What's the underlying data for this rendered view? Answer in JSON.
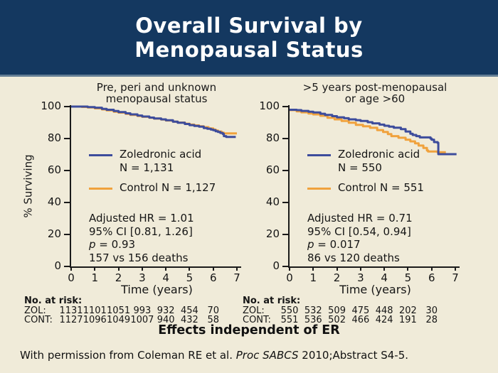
{
  "slide": {
    "title_line1": "Overall Survival by",
    "title_line2": "Menopausal Status",
    "effects_note": "Effects independent of ER",
    "footer_prefix": "With permission from Coleman RE et al. ",
    "footer_italic": "Proc SABCS",
    "footer_suffix": " 2010;Abstract S4-5."
  },
  "colors": {
    "header_bg": "#143860",
    "header_rule": "#647E95",
    "body_bg": "#F0EBD9",
    "zoledronic": "#3D4C9C",
    "control": "#F0A23D",
    "axis": "#1a1a1a",
    "title_text": "#FFFFFF"
  },
  "chart_data": [
    {
      "type": "line",
      "title_line1": "Pre, peri and unknown",
      "title_line2": "menopausal status",
      "ylabel": "% Surviving",
      "xlabel": "Time (years)",
      "xlim": [
        0,
        7
      ],
      "ylim": [
        0,
        100
      ],
      "xticks": [
        0,
        1,
        2,
        3,
        4,
        5,
        6,
        7
      ],
      "yticks": [
        0,
        20,
        40,
        60,
        80,
        100
      ],
      "grid": false,
      "legend_position": "center-left",
      "legend": [
        {
          "line1": "Zoledronic acid",
          "line2": "N = 1,131"
        },
        {
          "line1": "Control N = 1,127",
          "line2": ""
        }
      ],
      "stats": {
        "hr": "Adjusted HR = 1.01",
        "ci": "95% CI [0.81, 1.26]",
        "p_italic": "p",
        "p_rest": " = 0.93",
        "deaths": "157 vs 156 deaths"
      },
      "series": [
        {
          "name": "Zoledronic acid",
          "color_key": "zoledronic",
          "points": [
            [
              0,
              100
            ],
            [
              0.45,
              100
            ],
            [
              0.7,
              99.7
            ],
            [
              1,
              99.3
            ],
            [
              1.3,
              98.6
            ],
            [
              1.5,
              98
            ],
            [
              1.8,
              97.2
            ],
            [
              2,
              96.6
            ],
            [
              2.3,
              95.8
            ],
            [
              2.5,
              95.1
            ],
            [
              2.8,
              94.4
            ],
            [
              3,
              93.8
            ],
            [
              3.3,
              93.1
            ],
            [
              3.5,
              92.6
            ],
            [
              3.8,
              92
            ],
            [
              4,
              91.4
            ],
            [
              4.3,
              90.6
            ],
            [
              4.5,
              89.9
            ],
            [
              4.8,
              89.1
            ],
            [
              5,
              88.4
            ],
            [
              5.2,
              87.9
            ],
            [
              5.4,
              87.4
            ],
            [
              5.6,
              86.6
            ],
            [
              5.75,
              86.1
            ],
            [
              5.9,
              85.6
            ],
            [
              6,
              85.2
            ],
            [
              6.1,
              84.6
            ],
            [
              6.2,
              84.1
            ],
            [
              6.3,
              83.5
            ],
            [
              6.4,
              82.9
            ],
            [
              6.45,
              81.5
            ],
            [
              6.55,
              81
            ],
            [
              6.95,
              81
            ]
          ]
        },
        {
          "name": "Control",
          "color_key": "control",
          "points": [
            [
              0,
              100
            ],
            [
              0.45,
              99.8
            ],
            [
              0.7,
              99.4
            ],
            [
              1,
              98.9
            ],
            [
              1.3,
              98.2
            ],
            [
              1.5,
              97.6
            ],
            [
              1.8,
              96.8
            ],
            [
              2,
              96.2
            ],
            [
              2.3,
              95.4
            ],
            [
              2.5,
              94.8
            ],
            [
              2.8,
              94.1
            ],
            [
              3,
              93.6
            ],
            [
              3.3,
              93
            ],
            [
              3.5,
              92.5
            ],
            [
              3.8,
              91.9
            ],
            [
              4,
              91.3
            ],
            [
              4.3,
              90.6
            ],
            [
              4.5,
              90
            ],
            [
              4.8,
              89.3
            ],
            [
              5,
              88.7
            ],
            [
              5.2,
              88.2
            ],
            [
              5.4,
              87.7
            ],
            [
              5.6,
              87.1
            ],
            [
              5.8,
              86.3
            ],
            [
              6,
              85.6
            ],
            [
              6.1,
              85
            ],
            [
              6.2,
              84.4
            ],
            [
              6.35,
              83.7
            ],
            [
              6.45,
              83.2
            ],
            [
              7,
              83.2
            ]
          ]
        }
      ],
      "at_risk": {
        "label": "No. at risk:",
        "rows": [
          {
            "label": "ZOL:",
            "values": [
              1131,
              1101,
              1051,
              993,
              932,
              454,
              70
            ]
          },
          {
            "label": "CONT:",
            "values": [
              1127,
              1096,
              1049,
              1007,
              940,
              432,
              58
            ]
          }
        ]
      }
    },
    {
      "type": "line",
      "title_line1": ">5 years post-menopausal",
      "title_line2": "or age >60",
      "ylabel": "",
      "xlabel": "Time (years)",
      "xlim": [
        0,
        7
      ],
      "ylim": [
        0,
        100
      ],
      "xticks": [
        0,
        1,
        2,
        3,
        4,
        5,
        6,
        7
      ],
      "yticks": [
        0,
        20,
        40,
        60,
        80,
        100
      ],
      "grid": false,
      "legend_position": "center-left",
      "legend": [
        {
          "line1": "Zoledronic acid",
          "line2": "N = 550"
        },
        {
          "line1": "Control N = 551",
          "line2": ""
        }
      ],
      "stats": {
        "hr": "Adjusted HR = 0.71",
        "ci": "95% CI [0.54, 0.94]",
        "p_italic": "p",
        "p_rest": " = 0.017",
        "deaths": "86 vs 120 deaths"
      },
      "series": [
        {
          "name": "Zoledronic acid",
          "color_key": "zoledronic",
          "points": [
            [
              0,
              98
            ],
            [
              0.3,
              97.8
            ],
            [
              0.5,
              97.3
            ],
            [
              0.8,
              96.8
            ],
            [
              1,
              96.3
            ],
            [
              1.3,
              95.5
            ],
            [
              1.5,
              94.8
            ],
            [
              1.8,
              94
            ],
            [
              2,
              93.3
            ],
            [
              2.3,
              92.7
            ],
            [
              2.5,
              92
            ],
            [
              2.8,
              91.5
            ],
            [
              3,
              91
            ],
            [
              3.3,
              90.2
            ],
            [
              3.5,
              89.5
            ],
            [
              3.8,
              88.7
            ],
            [
              4,
              88
            ],
            [
              4.2,
              87.4
            ],
            [
              4.4,
              86.8
            ],
            [
              4.7,
              85.9
            ],
            [
              4.9,
              84.4
            ],
            [
              5.1,
              83
            ],
            [
              5.2,
              82.2
            ],
            [
              5.35,
              81.5
            ],
            [
              5.5,
              80.7
            ],
            [
              5.95,
              80
            ],
            [
              6,
              79.3
            ],
            [
              6.1,
              77.8
            ],
            [
              6.25,
              77.3
            ],
            [
              6.28,
              70.2
            ],
            [
              7.05,
              70.2
            ]
          ]
        },
        {
          "name": "Control",
          "color_key": "control",
          "points": [
            [
              0,
              97.8
            ],
            [
              0.3,
              97
            ],
            [
              0.5,
              96.4
            ],
            [
              0.8,
              95.7
            ],
            [
              1,
              95.1
            ],
            [
              1.3,
              94.2
            ],
            [
              1.6,
              93
            ],
            [
              1.9,
              92
            ],
            [
              2.2,
              91
            ],
            [
              2.5,
              89.9
            ],
            [
              2.8,
              88.6
            ],
            [
              3.1,
              87.7
            ],
            [
              3.4,
              86.7
            ],
            [
              3.7,
              85.3
            ],
            [
              3.95,
              84.1
            ],
            [
              4.15,
              82.8
            ],
            [
              4.3,
              81.5
            ],
            [
              4.6,
              80.5
            ],
            [
              4.9,
              79.3
            ],
            [
              5.1,
              78.2
            ],
            [
              5.3,
              77
            ],
            [
              5.45,
              75.6
            ],
            [
              5.65,
              74.1
            ],
            [
              5.8,
              72.6
            ],
            [
              5.85,
              71.9
            ],
            [
              6.2,
              71.9
            ],
            [
              6.25,
              71.4
            ],
            [
              6.6,
              71.4
            ]
          ]
        }
      ],
      "at_risk": {
        "label": "No. at risk:",
        "rows": [
          {
            "label": "ZOL:",
            "values": [
              550,
              532,
              509,
              475,
              448,
              202,
              30
            ]
          },
          {
            "label": "CONT:",
            "values": [
              551,
              536,
              502,
              466,
              424,
              191,
              28
            ]
          }
        ]
      }
    }
  ]
}
